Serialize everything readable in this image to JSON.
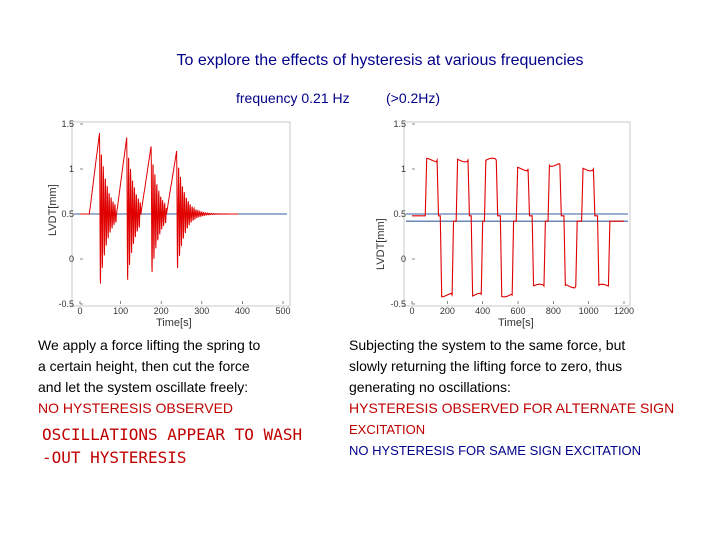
{
  "title": "To explore the effects of hysteresis at various frequencies",
  "frequency_label": "frequency 0.21 Hz",
  "frequency_note": "(>0.2Hz)",
  "chart_data": [
    {
      "type": "line",
      "title": "",
      "xlabel": "Time[s]",
      "ylabel": "LVDT[mm]",
      "xlim": [
        0,
        500
      ],
      "ylim": [
        -0.5,
        1.5
      ],
      "x_ticks": [
        "0",
        "100",
        "200",
        "300",
        "400",
        "500"
      ],
      "y_ticks": [
        "1.5",
        "1",
        "0.5",
        "0",
        "-0.5"
      ],
      "reference_lines": [
        0.5
      ],
      "series": [
        {
          "name": "LVDT displacement (cut force, free oscillation)",
          "color": "#e00000",
          "bursts": [
            {
              "t_release": 48,
              "peak": 1.4,
              "decay": 18
            },
            {
              "t_release": 115,
              "peak": 1.35,
              "decay": 18
            },
            {
              "t_release": 175,
              "peak": 1.25,
              "decay": 18
            },
            {
              "t_release": 238,
              "peak": 1.2,
              "decay": 18
            }
          ],
          "baseline": 0.5
        }
      ]
    },
    {
      "type": "line",
      "title": "",
      "xlabel": "Time[s]",
      "ylabel": "LVDT[mm]",
      "xlim": [
        0,
        1200
      ],
      "ylim": [
        -0.5,
        1.5
      ],
      "x_ticks": [
        "0",
        "200",
        "400",
        "600",
        "800",
        "1000",
        "1200"
      ],
      "y_ticks": [
        "1.5",
        "1",
        "0.5",
        "0",
        "-0.5"
      ],
      "reference_lines": [
        0.5,
        0.42
      ],
      "series": [
        {
          "name": "LVDT displacement (slow force return)",
          "color": "#e00000",
          "pulses": [
            {
              "start": 75,
              "end": 150,
              "level": 1.1,
              "settle": 0.48
            },
            {
              "start": 250,
              "end": 325,
              "level": 1.1,
              "settle": 0.48
            },
            {
              "start": 410,
              "end": 485,
              "level": 1.1,
              "settle": 0.48
            },
            {
              "start": 590,
              "end": 665,
              "level": 1.0,
              "settle": 0.48
            },
            {
              "start": 770,
              "end": 845,
              "level": 1.05,
              "settle": 0.48
            },
            {
              "start": 960,
              "end": 1035,
              "level": 1.0,
              "settle": 0.48
            },
            {
              "start": 160,
              "end": 235,
              "level": -0.4,
              "settle": 0.42
            },
            {
              "start": 335,
              "end": 400,
              "level": -0.4,
              "settle": 0.42
            },
            {
              "start": 500,
              "end": 575,
              "level": -0.4,
              "settle": 0.42
            },
            {
              "start": 680,
              "end": 755,
              "level": -0.3,
              "settle": 0.42
            },
            {
              "start": 860,
              "end": 935,
              "level": -0.3,
              "settle": 0.42
            },
            {
              "start": 1050,
              "end": 1120,
              "level": -0.3,
              "settle": 0.42
            }
          ],
          "baseline": 0.48
        }
      ]
    }
  ],
  "left_text": {
    "lines": [
      "We apply a force lifting the spring to",
      "a certain height, then cut the force",
      "and let the system oscillate freely:"
    ],
    "conclusion": "NO HYSTERESIS OBSERVED"
  },
  "right_text": {
    "lines": [
      "Subjecting the system to the same force, but",
      "slowly returning the lifting force to zero, thus",
      "generating no oscillations:"
    ],
    "conclusion_1": "HYSTERESIS OBSERVED FOR ALTERNATE  SIGN",
    "conclusion_1b": "EXCITATION",
    "conclusion_2": "NO HYSTERESIS FOR SAME SIGN EXCITATION"
  },
  "bottom_note": {
    "line1": "OSCILLATIONS APPEAR TO WASH",
    "line2": "-OUT HYSTERESIS"
  }
}
